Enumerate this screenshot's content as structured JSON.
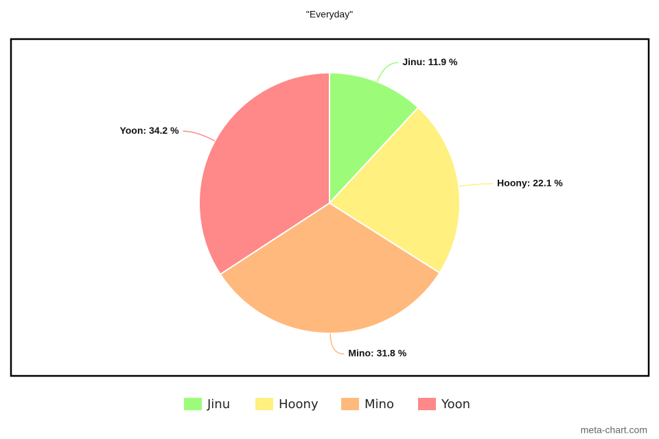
{
  "chart_data": {
    "type": "pie",
    "title": "\"Everyday\"",
    "categories": [
      "Jinu",
      "Hoony",
      "Mino",
      "Yoon"
    ],
    "values": [
      11.9,
      22.1,
      31.8,
      34.2
    ],
    "value_labels": [
      "Jinu: 11.9 %",
      "Hoony: 22.1 %",
      "Mino: 31.8 %",
      "Yoon: 34.2 %"
    ],
    "colors": [
      "#9cfc7a",
      "#fff07f",
      "#ffb97c",
      "#ff8888"
    ],
    "legend": "bottom",
    "credit": "meta-chart.com"
  }
}
